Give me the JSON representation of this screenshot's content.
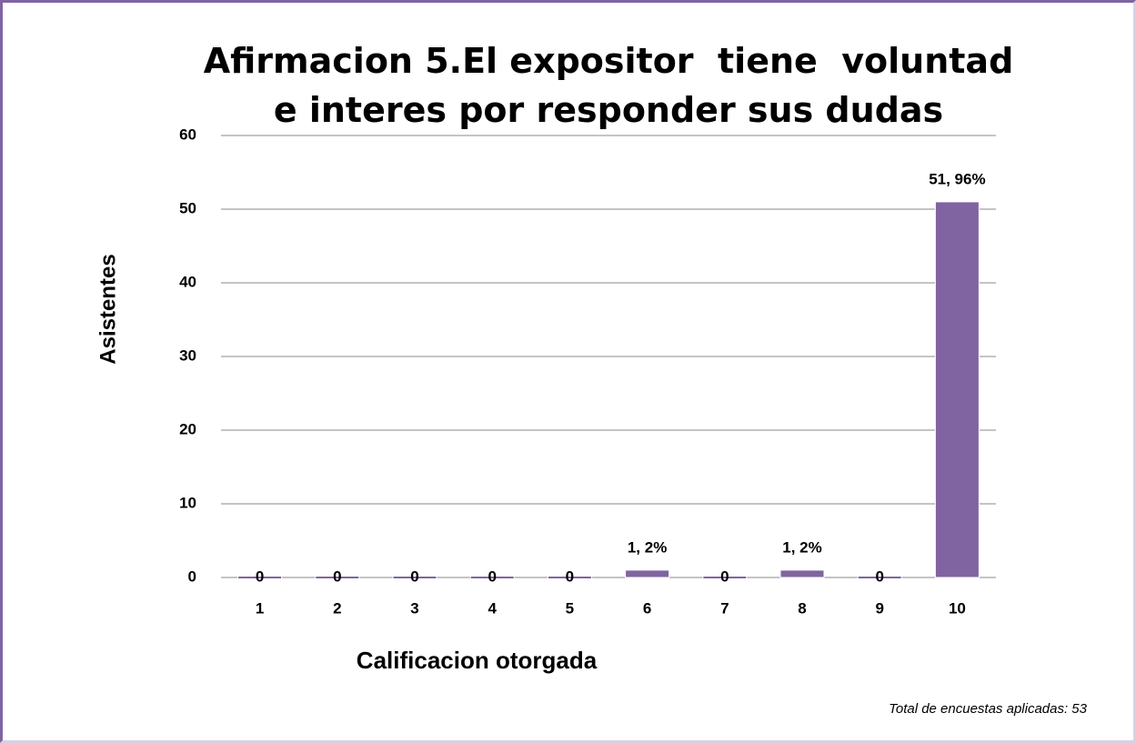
{
  "chart_data": {
    "type": "bar",
    "title": "Afirmacion 5.El expositor  tiene  voluntad e interes por responder sus dudas",
    "x_label": "Calificacion otorgada",
    "y_label": "Asistentes",
    "annotation": "Total de encuestas aplicadas: 53",
    "categories": [
      "1",
      "2",
      "3",
      "4",
      "5",
      "6",
      "7",
      "8",
      "9",
      "10"
    ],
    "values": [
      0,
      0,
      0,
      0,
      0,
      1,
      0,
      1,
      0,
      51
    ],
    "value_labels": [
      "0",
      "0",
      "0",
      "0",
      "0",
      "1, 2%",
      "0",
      "1, 2%",
      "0",
      "51, 96%"
    ],
    "color": "#8064a2",
    "ylim": [
      0,
      60
    ],
    "yticks": [
      0,
      10,
      20,
      30,
      40,
      50,
      60
    ],
    "grid": true
  }
}
